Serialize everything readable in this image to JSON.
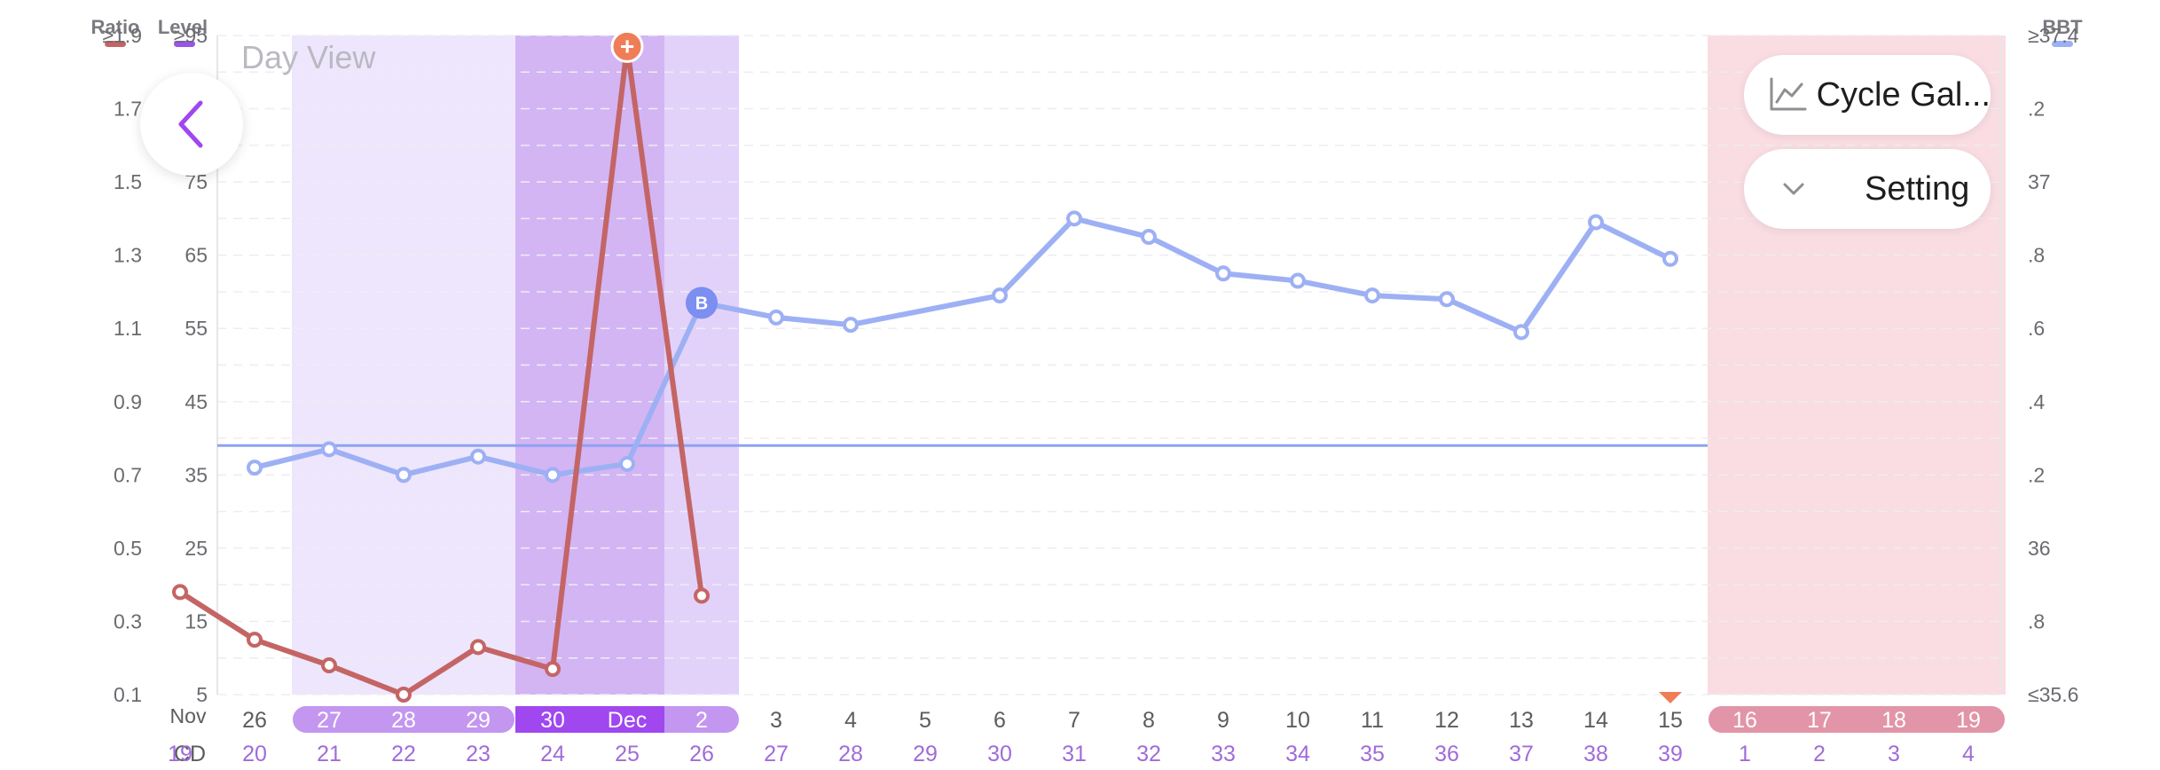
{
  "view_label": "Day View",
  "menu": {
    "cycle_label": "Cycle Gal...",
    "setting_label": "Setting"
  },
  "icons": {
    "back": "chevron-left-icon",
    "cycle": "line-chart-icon",
    "setting": "chevron-down-icon"
  },
  "colors": {
    "ratio": "#c46565",
    "level": "#9a55e8",
    "bbt": "#9eb0f4",
    "fertile_light": "#eee6fc",
    "fertile_mid": "#e2d2fa",
    "fertile_dark": "#d3b5f4",
    "period": "#f9dde2",
    "period_pill": "#e295a8",
    "pill_light": "#c396f0",
    "pill_dark": "#a047f0",
    "cd_text": "#a06cd9"
  },
  "chart_data": {
    "type": "line",
    "left_axis_ratio": {
      "title": "Ratio",
      "ticks": [
        "≥1.9",
        "1.7",
        "1.5",
        "1.3",
        "1.1",
        "0.9",
        "0.7",
        "0.5",
        "0.3",
        "0.1"
      ],
      "range": [
        0.1,
        1.9
      ]
    },
    "left_axis_level": {
      "title": "Level",
      "ticks": [
        "≥95",
        "85",
        "75",
        "65",
        "55",
        "45",
        "35",
        "25",
        "15",
        "5"
      ],
      "range": [
        5,
        95
      ]
    },
    "right_axis_bbt": {
      "title": "BBT",
      "ticks": [
        "≥37.4",
        ".2",
        "37",
        ".8",
        ".6",
        ".4",
        ".2",
        "36",
        ".8",
        "≤35.6"
      ],
      "range": [
        35.6,
        37.4
      ]
    },
    "month_label_first": "Nov",
    "cd_prefix": "CD",
    "dates": [
      "",
      "26",
      "27",
      "28",
      "29",
      "30",
      "Dec",
      "2",
      "3",
      "4",
      "5",
      "6",
      "7",
      "8",
      "9",
      "10",
      "11",
      "12",
      "13",
      "14",
      "15",
      "16",
      "17",
      "18",
      "19"
    ],
    "cycle_days": [
      "19",
      "20",
      "21",
      "22",
      "23",
      "24",
      "25",
      "26",
      "27",
      "28",
      "29",
      "30",
      "31",
      "32",
      "33",
      "34",
      "35",
      "36",
      "37",
      "38",
      "39",
      "1",
      "2",
      "3",
      "4"
    ],
    "series": [
      {
        "name": "Ratio",
        "x": [
          19,
          20,
          21,
          22,
          23,
          24,
          25,
          26
        ],
        "values": [
          0.38,
          0.25,
          0.18,
          0.1,
          0.23,
          0.17,
          1.87,
          0.37
        ]
      },
      {
        "name": "BBT",
        "x": [
          20,
          21,
          22,
          23,
          24,
          25,
          26,
          27,
          28,
          30,
          31,
          32,
          33,
          34,
          35,
          36,
          37,
          38,
          39
        ],
        "values": [
          36.22,
          36.27,
          36.2,
          36.25,
          36.2,
          36.23,
          36.67,
          36.63,
          36.61,
          36.69,
          36.9,
          36.85,
          36.75,
          36.73,
          36.69,
          36.68,
          36.59,
          36.89,
          36.79
        ]
      }
    ],
    "coverline": 36.28,
    "peak_marker": {
      "x": 25,
      "symbol": "+"
    },
    "bbt_marker": {
      "x": 26,
      "label": "B"
    },
    "fertile_window": [
      21,
      26
    ],
    "peak_days": [
      24,
      25
    ],
    "period_days": [
      1,
      2,
      3,
      4
    ],
    "today_marker_x": 39,
    "grid": true
  }
}
